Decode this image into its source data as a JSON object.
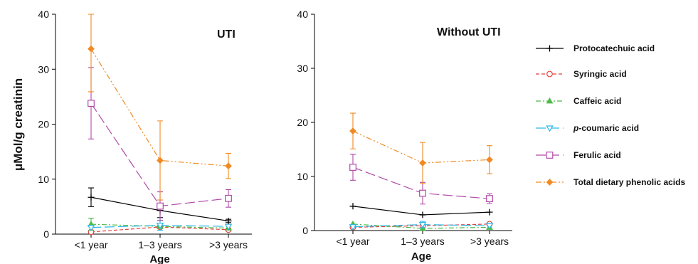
{
  "ylabel": "μMol/g creatinin",
  "legend": [
    {
      "series": "Protocatechuic acid",
      "prefix": "",
      "italic": "",
      "label": "Protocatechuic acid"
    },
    {
      "series": "Syringic acid",
      "prefix": "",
      "italic": "",
      "label": "Syringic acid"
    },
    {
      "series": "Caffeic acid",
      "prefix": "",
      "italic": "",
      "label": "Caffeic acid"
    },
    {
      "series": "p-coumaric acid",
      "prefix": "",
      "italic": "p",
      "label": "-coumaric acid"
    },
    {
      "series": "Ferulic acid",
      "prefix": "",
      "italic": "",
      "label": "Ferulic acid"
    },
    {
      "series": "Total dietary phenolic acids",
      "prefix": "",
      "italic": "",
      "label": "Total dietary phenolic acids"
    }
  ],
  "chart_data": [
    {
      "type": "line",
      "title": "UTI",
      "xlabel": "Age",
      "ylabel": "μMol/g creatinin",
      "categories": [
        "<1 year",
        "1–3 years",
        ">3 years"
      ],
      "ylim": [
        0,
        40
      ],
      "yticks": [
        0,
        10,
        20,
        30,
        40
      ],
      "legend_position": "right",
      "series": [
        {
          "name": "Protocatechuic acid",
          "color": "#000000",
          "marker": "plus",
          "dash": "solid",
          "values": [
            6.7,
            4.3,
            2.4
          ],
          "errors": [
            1.7,
            1.3,
            0.3
          ]
        },
        {
          "name": "Syringic acid",
          "color": "#e0403a",
          "marker": "circle",
          "dash": "dashed",
          "values": [
            0.4,
            1.3,
            0.8
          ],
          "errors": [
            0,
            0,
            0
          ]
        },
        {
          "name": "Caffeic acid",
          "color": "#4cbb47",
          "marker": "triangle-up",
          "dash": "dashdot",
          "values": [
            1.8,
            1.4,
            1.1
          ],
          "errors": [
            1.1,
            0,
            0
          ]
        },
        {
          "name": "p-coumaric acid",
          "color": "#2cb6e8",
          "marker": "triangle-down",
          "dash": "longdash",
          "values": [
            1.2,
            1.6,
            1.4
          ],
          "errors": [
            0,
            0.9,
            0
          ]
        },
        {
          "name": "Ferulic acid",
          "color": "#b04aa8",
          "marker": "square",
          "dash": "longdash",
          "values": [
            23.8,
            5.1,
            6.5
          ],
          "errors": [
            6.5,
            2.6,
            1.6
          ]
        },
        {
          "name": "Total dietary phenolic acids",
          "color": "#f08a24",
          "marker": "diamond",
          "dash": "dashdotdot",
          "values": [
            33.7,
            13.4,
            12.4
          ],
          "errors": [
            7.8,
            7.2,
            2.3
          ]
        }
      ]
    },
    {
      "type": "line",
      "title": "Without UTI",
      "xlabel": "Age",
      "ylabel": "",
      "categories": [
        "<1 year",
        "1–3 years",
        ">3 years"
      ],
      "ylim": [
        0,
        40
      ],
      "yticks": [
        0,
        10,
        20,
        30,
        40
      ],
      "series": [
        {
          "name": "Protocatechuic acid",
          "color": "#000000",
          "marker": "plus",
          "dash": "solid",
          "values": [
            4.5,
            2.9,
            3.4
          ],
          "errors": [
            0,
            0,
            0
          ]
        },
        {
          "name": "Syringic acid",
          "color": "#e0403a",
          "marker": "circle",
          "dash": "dashed",
          "values": [
            0.6,
            0.9,
            1.2
          ],
          "errors": [
            0,
            0,
            0
          ]
        },
        {
          "name": "Caffeic acid",
          "color": "#4cbb47",
          "marker": "triangle-up",
          "dash": "dashdot",
          "values": [
            1.2,
            0.4,
            0.6
          ],
          "errors": [
            0,
            0,
            0
          ]
        },
        {
          "name": "p-coumaric acid",
          "color": "#2cb6e8",
          "marker": "triangle-down",
          "dash": "longdash",
          "values": [
            0.7,
            1.1,
            0.9
          ],
          "errors": [
            0,
            0.6,
            0
          ]
        },
        {
          "name": "Ferulic acid",
          "color": "#b04aa8",
          "marker": "square",
          "dash": "longdash",
          "values": [
            11.7,
            6.9,
            5.9
          ],
          "errors": [
            2.4,
            2.0,
            0.9
          ]
        },
        {
          "name": "Total dietary phenolic acids",
          "color": "#f08a24",
          "marker": "diamond",
          "dash": "dashdotdot",
          "values": [
            18.4,
            12.5,
            13.1
          ],
          "errors": [
            3.3,
            3.8,
            2.6
          ]
        }
      ]
    }
  ]
}
